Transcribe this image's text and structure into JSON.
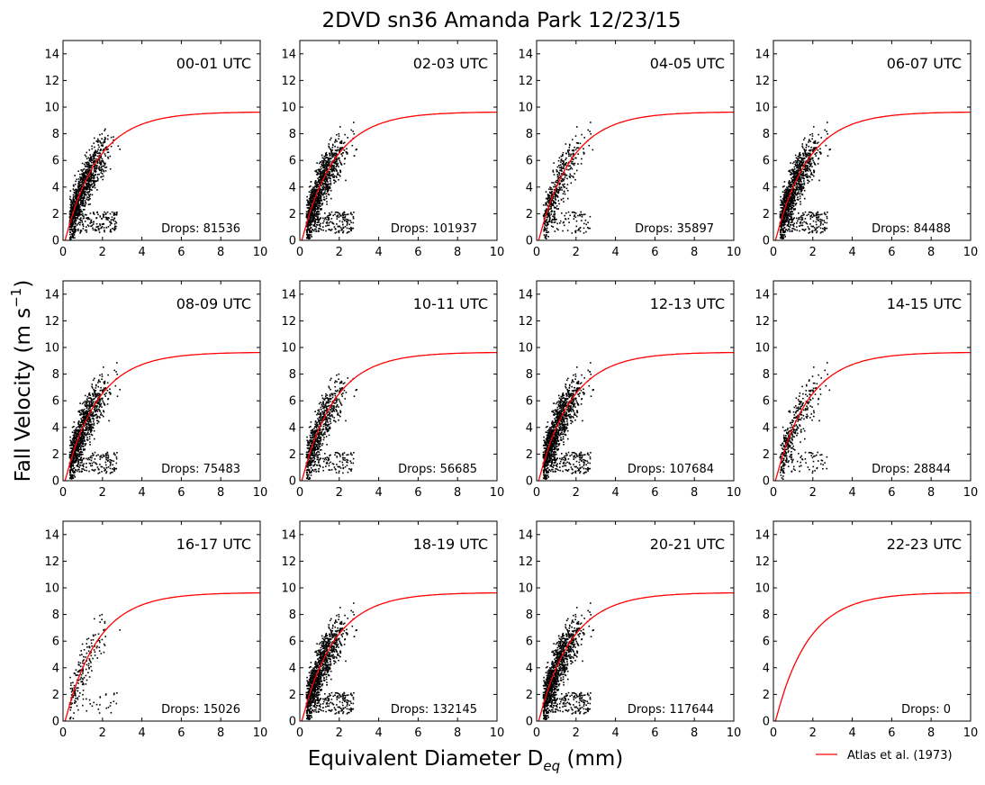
{
  "figure": {
    "title": "2DVD sn36 Amanda Park 12/23/15",
    "ylabel_main": "Fall Velocity (m s",
    "ylabel_sup": "−1",
    "ylabel_end": ")",
    "xlabel_main": "Equivalent Diameter D",
    "xlabel_sub": "eq",
    "xlabel_end": " (mm)",
    "legend_label": "Atlas et al. (1973)",
    "curve_color": "#ff0000",
    "point_color": "#000000"
  },
  "chart_data": {
    "type": "scatter",
    "xlim": [
      0,
      10
    ],
    "ylim": [
      0,
      15
    ],
    "xticks": [
      0,
      2,
      4,
      6,
      8,
      10
    ],
    "yticks": [
      0,
      2,
      4,
      6,
      8,
      10,
      12,
      14
    ],
    "grid": false,
    "legend": "bottom-right",
    "fit_curve": {
      "name": "Atlas et al. (1973)",
      "equation": "v = 9.65 - 10.3*exp(-0.6*D)",
      "color": "#ff0000"
    },
    "panels": [
      {
        "label": "00-01 UTC",
        "drops_label": "Drops: 81536",
        "drops": 81536
      },
      {
        "label": "02-03 UTC",
        "drops_label": "Drops: 101937",
        "drops": 101937
      },
      {
        "label": "04-05 UTC",
        "drops_label": "Drops: 35897",
        "drops": 35897
      },
      {
        "label": "06-07 UTC",
        "drops_label": "Drops: 84488",
        "drops": 84488
      },
      {
        "label": "08-09 UTC",
        "drops_label": "Drops: 75483",
        "drops": 75483
      },
      {
        "label": "10-11 UTC",
        "drops_label": "Drops: 56685",
        "drops": 56685
      },
      {
        "label": "12-13 UTC",
        "drops_label": "Drops: 107684",
        "drops": 107684
      },
      {
        "label": "14-15 UTC",
        "drops_label": "Drops: 28844",
        "drops": 28844
      },
      {
        "label": "16-17 UTC",
        "drops_label": "Drops: 15026",
        "drops": 15026
      },
      {
        "label": "18-19 UTC",
        "drops_label": "Drops: 132145",
        "drops": 132145
      },
      {
        "label": "20-21 UTC",
        "drops_label": "Drops: 117644",
        "drops": 117644
      },
      {
        "label": "22-23 UTC",
        "drops_label": "Drops: 0",
        "drops": 0
      }
    ]
  }
}
